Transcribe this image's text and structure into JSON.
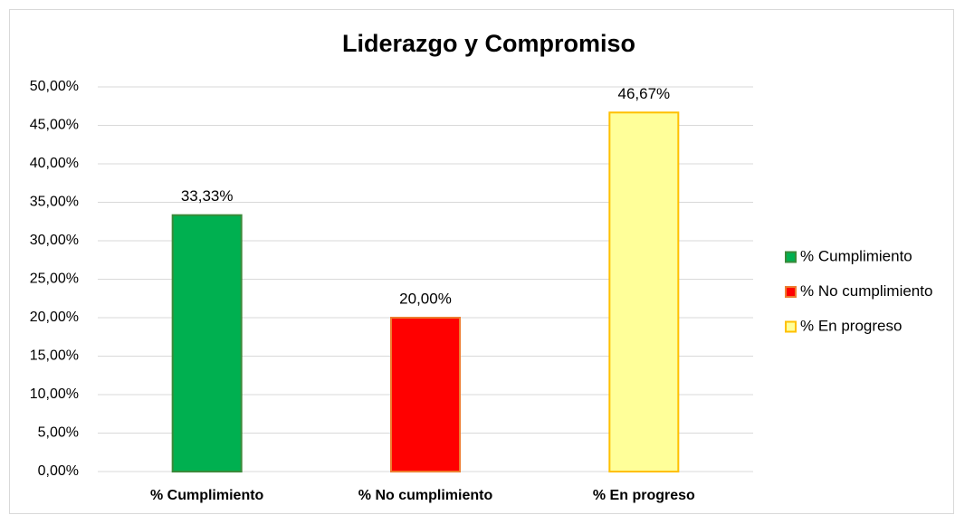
{
  "chart_data": {
    "type": "bar",
    "title": "Liderazgo y Compromiso",
    "categories": [
      "% Cumplimiento",
      "% No cumplimiento",
      "% En progreso"
    ],
    "values": [
      33.33,
      20,
      46.67
    ],
    "value_labels": [
      "33,33%",
      "20,00%",
      "46,67%"
    ],
    "colors": [
      "#00b050",
      "#ff0000",
      "#ffff99"
    ],
    "edge_colors": [
      "#3a8a3a",
      "#ed7d31",
      "#ffc000"
    ],
    "ylim": [
      0,
      50
    ],
    "yticks": [
      {
        "value": 0,
        "label": "0,00%"
      },
      {
        "value": 5,
        "label": "5,00%"
      },
      {
        "value": 10,
        "label": "10,00%"
      },
      {
        "value": 15,
        "label": "15,00%"
      },
      {
        "value": 20,
        "label": "20,00%"
      },
      {
        "value": 25,
        "label": "25,00%"
      },
      {
        "value": 30,
        "label": "30,00%"
      },
      {
        "value": 35,
        "label": "35,00%"
      },
      {
        "value": 40,
        "label": "40,00%"
      },
      {
        "value": 45,
        "label": "45,00%"
      },
      {
        "value": 50,
        "label": "50,00%"
      }
    ],
    "grid": true,
    "legend": "right"
  }
}
